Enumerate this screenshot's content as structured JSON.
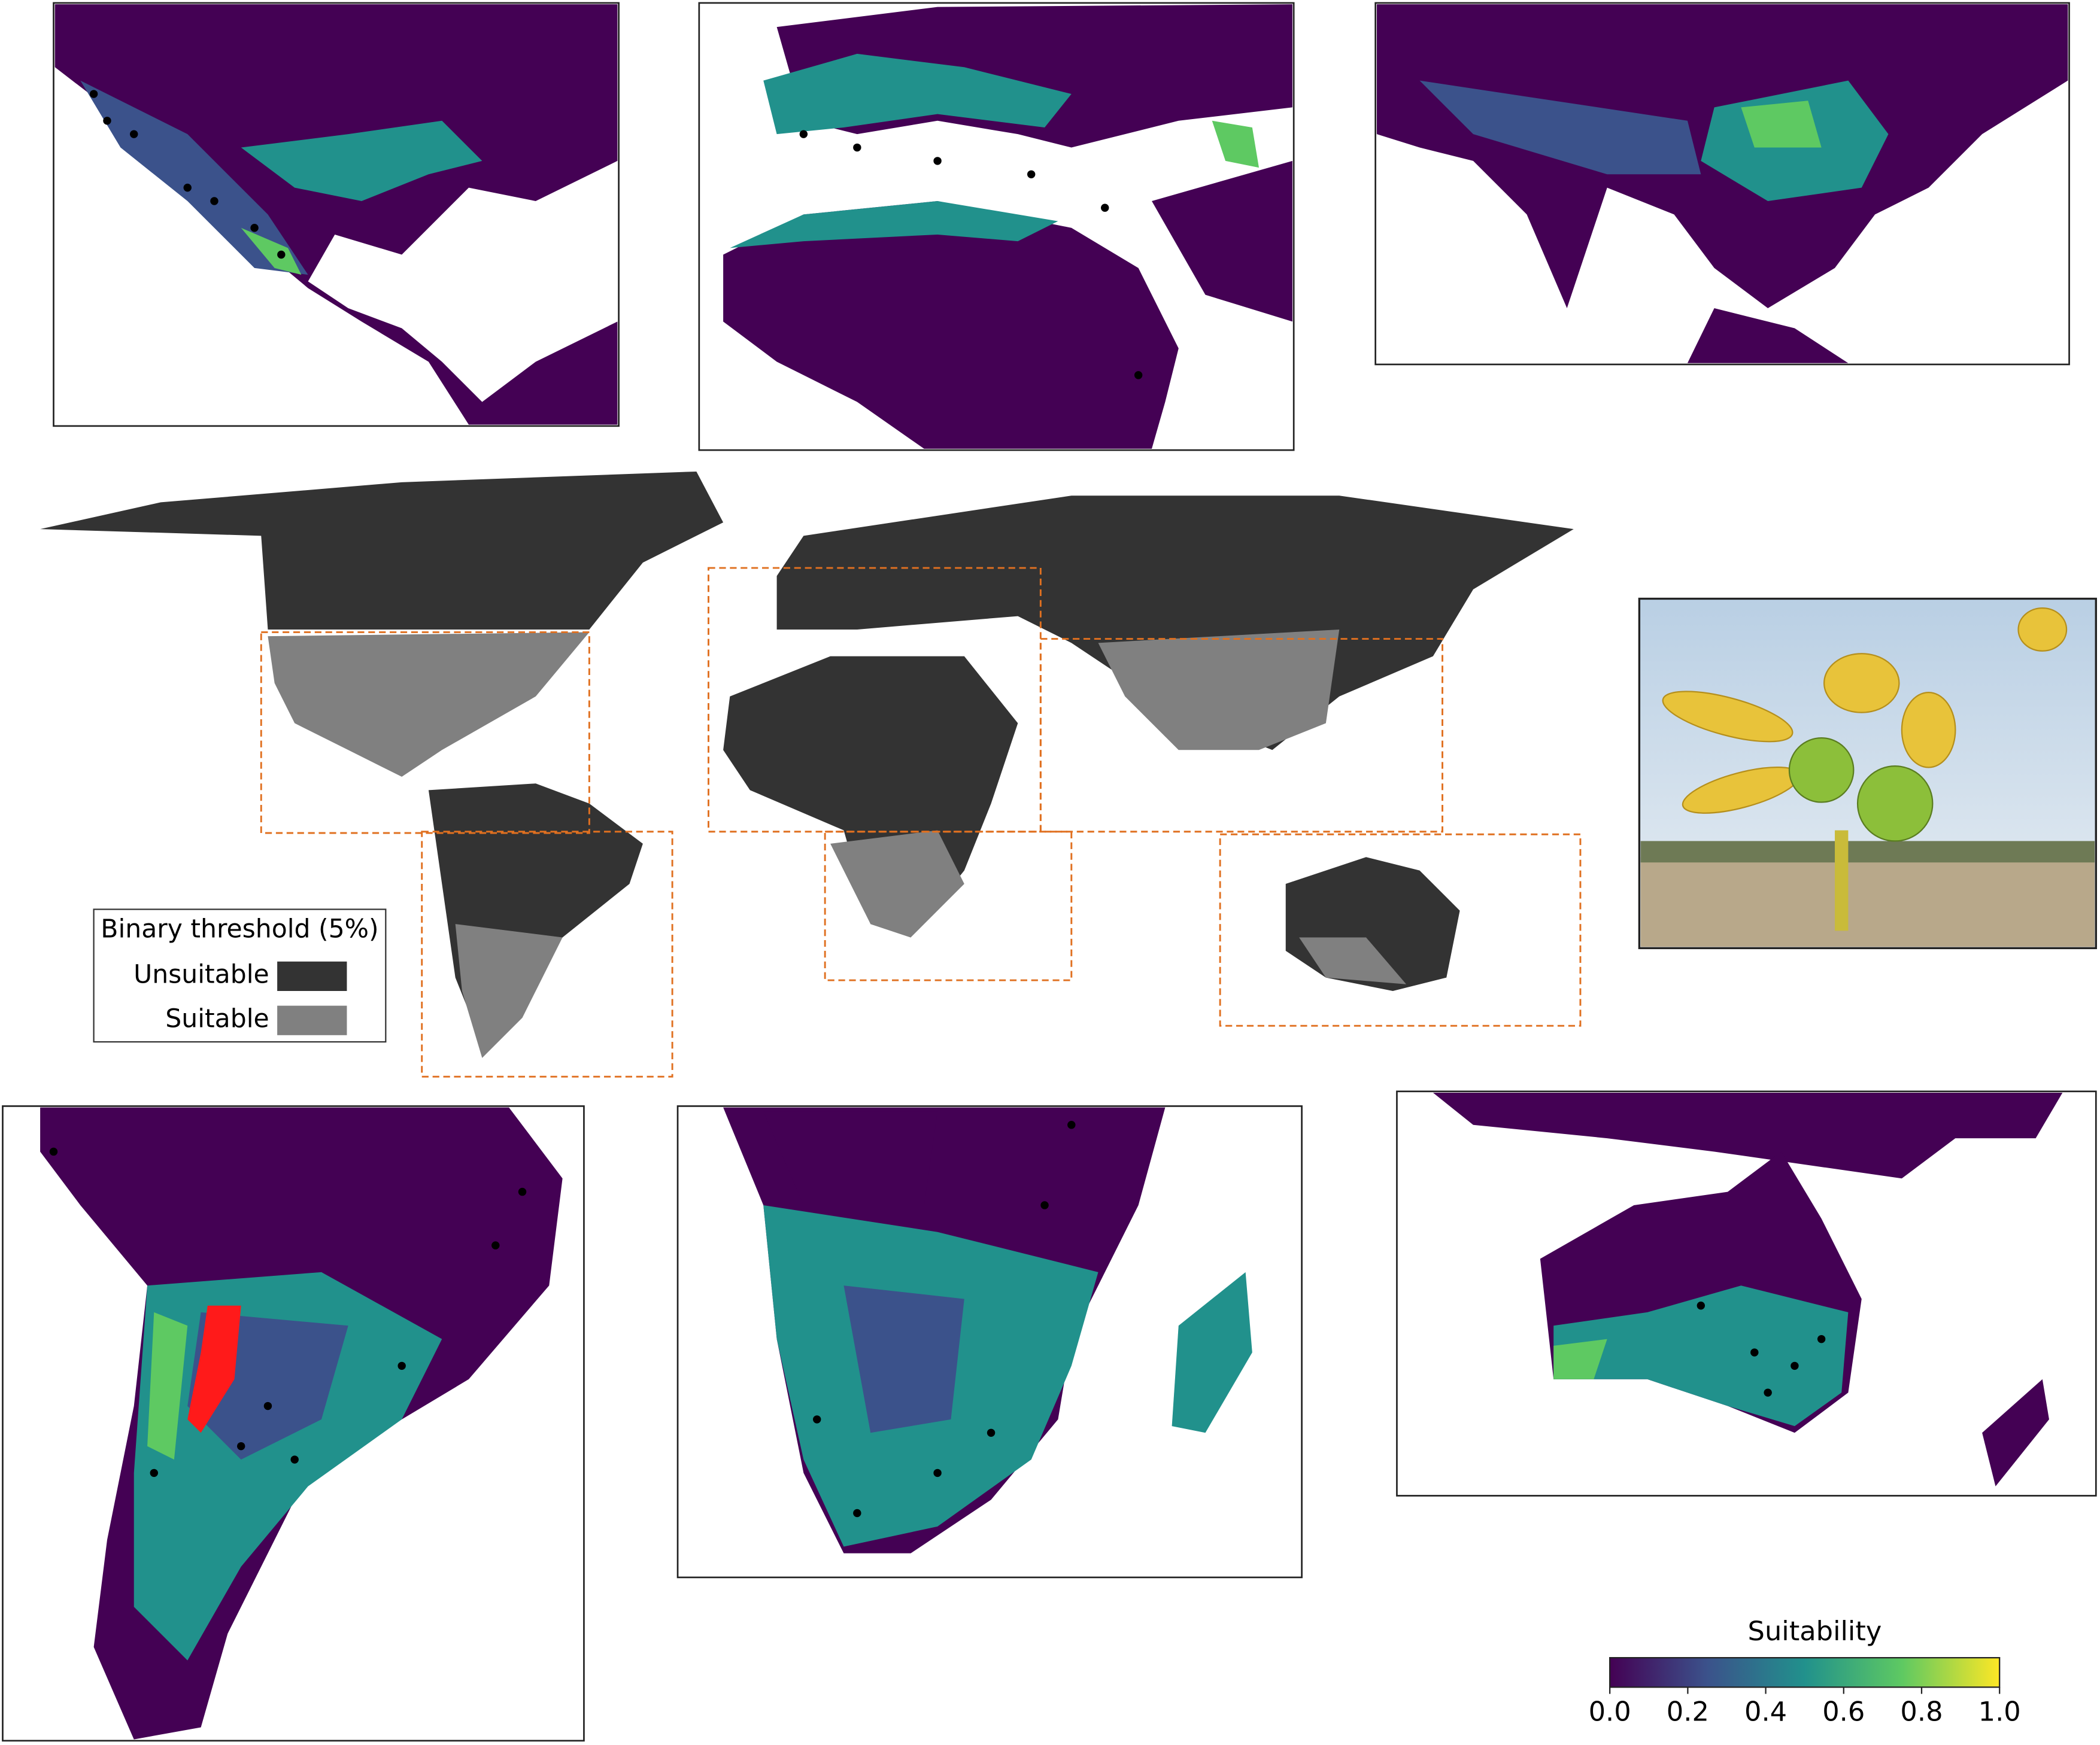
{
  "binary_legend": {
    "title": "Binary threshold (5%)",
    "entries": [
      {
        "label": "Unsuitable",
        "color": "#333333"
      },
      {
        "label": "Suitable",
        "color": "#808080"
      }
    ]
  },
  "colorbar": {
    "title": "Suitability",
    "lim": [
      0,
      1
    ],
    "ticks": [
      {
        "value": 0,
        "label": "0.0"
      },
      0.2,
      0.4,
      0.6,
      0.8,
      {
        "value": 1,
        "label": "1.0"
      }
    ],
    "colors": [
      "#440154",
      "#3b528b",
      "#21918c",
      "#5ec962",
      "#fde725"
    ]
  }
}
